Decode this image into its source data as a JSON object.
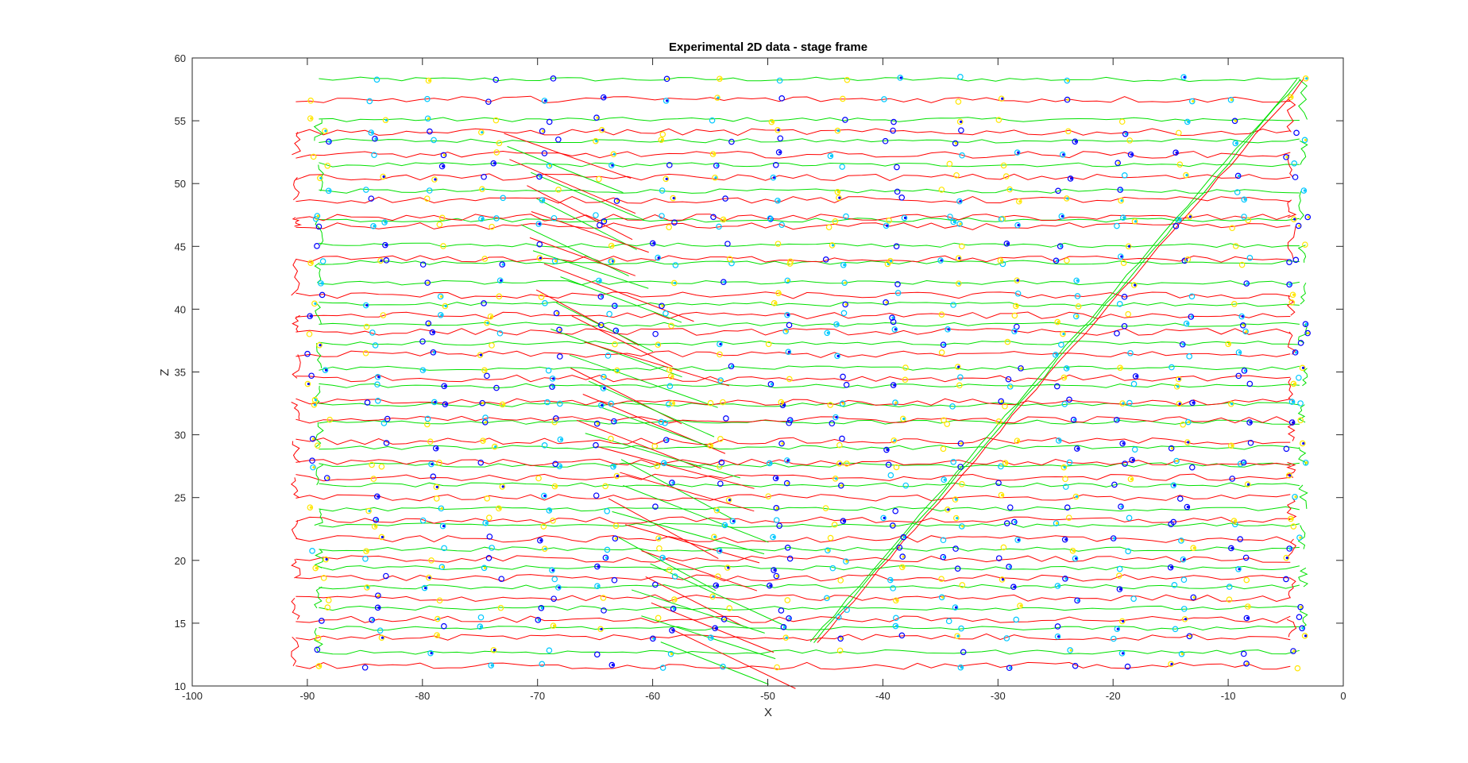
{
  "figure": {
    "background": "#ffffff",
    "axes_background": "#ffffff"
  },
  "chart_data": {
    "type": "line",
    "title": "Experimental 2D data - stage frame",
    "xlabel": "X",
    "ylabel": "Z",
    "xlim": [
      -100,
      0
    ],
    "ylim": [
      10,
      60
    ],
    "xticks": [
      -100,
      -90,
      -80,
      -70,
      -60,
      -50,
      -40,
      -30,
      -20,
      -10,
      0
    ],
    "yticks": [
      10,
      15,
      20,
      25,
      30,
      35,
      40,
      45,
      50,
      55,
      60
    ],
    "grid": false,
    "legend": "none",
    "series": [
      {
        "color": "#00e000",
        "style": "line",
        "rows_z": [
          58.3,
          55.1,
          53.4,
          51.5,
          49.4,
          47.1,
          45.1,
          43.7,
          42.1,
          40.4,
          38.8,
          37.3,
          35.3,
          33.9,
          32.4,
          31.0,
          29.0,
          27.6,
          26.0,
          24.1,
          22.8,
          20.9,
          19.4,
          17.9,
          16.2,
          14.6,
          12.7
        ],
        "x_range": [
          -89,
          -3.5
        ]
      },
      {
        "color": "#ff0000",
        "style": "line",
        "rows_z": [
          56.7,
          54.1,
          52.3,
          50.5,
          48.7,
          47.3,
          46.6,
          44.0,
          41.1,
          39.5,
          38.2,
          36.4,
          34.5,
          32.6,
          31.2,
          29.5,
          27.8,
          26.6,
          25.0,
          23.2,
          21.7,
          20.1,
          18.6,
          17.0,
          15.3,
          13.9,
          11.6
        ],
        "x_range": [
          -91,
          -4.5
        ]
      },
      {
        "color": "#0000ff",
        "style": "markers",
        "marker": "circle-star",
        "grid_x": [
          -89,
          -84,
          -79,
          -74,
          -69,
          -64,
          -59,
          -54,
          -49,
          -44,
          -39,
          -34,
          -29,
          -24,
          -19,
          -14,
          -9,
          -4
        ],
        "note_colors": [
          "#0000ff",
          "#00c8ff",
          "#ffe600"
        ]
      }
    ],
    "diagonal_sweep": {
      "from": [
        -46,
        13.5
      ],
      "to": [
        -3.7,
        58.3
      ]
    },
    "oblique_cluster": {
      "x_range": [
        -73,
        -52
      ],
      "z_range": [
        11.5,
        54
      ]
    }
  }
}
